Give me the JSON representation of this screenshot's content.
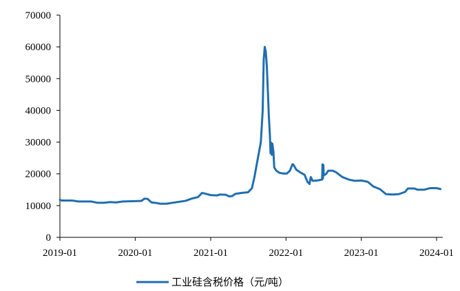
{
  "chart_data": {
    "type": "line",
    "title": "",
    "xlabel": "",
    "ylabel": "",
    "ylim": [
      0,
      70000
    ],
    "yticks": [
      0,
      10000,
      20000,
      30000,
      40000,
      50000,
      60000,
      70000
    ],
    "xlim": [
      "2019-01-01",
      "2024-01-31"
    ],
    "xtick_labels": [
      "2019-01",
      "2020-01",
      "2021-01",
      "2022-01",
      "2023-01",
      "2024-01"
    ],
    "xtick_dates": [
      "2019-01-01",
      "2020-01-01",
      "2021-01-01",
      "2022-01-01",
      "2023-01-01",
      "2024-01-01"
    ],
    "grid": false,
    "legend_position": "bottom-center",
    "series": [
      {
        "name": "工业硅含税价格（元/吨）",
        "color": "#1f6eb0",
        "points": [
          [
            "2019-01-01",
            11800
          ],
          [
            "2019-01-10",
            11600
          ],
          [
            "2019-03-01",
            11600
          ],
          [
            "2019-04-01",
            11300
          ],
          [
            "2019-06-01",
            11300
          ],
          [
            "2019-07-01",
            10900
          ],
          [
            "2019-08-01",
            10900
          ],
          [
            "2019-09-01",
            11100
          ],
          [
            "2019-10-01",
            11000
          ],
          [
            "2019-11-01",
            11300
          ],
          [
            "2020-01-01",
            11400
          ],
          [
            "2020-02-01",
            11500
          ],
          [
            "2020-02-15",
            12200
          ],
          [
            "2020-03-01",
            12100
          ],
          [
            "2020-03-20",
            11000
          ],
          [
            "2020-04-15",
            10800
          ],
          [
            "2020-05-01",
            10600
          ],
          [
            "2020-06-01",
            10600
          ],
          [
            "2020-07-01",
            10900
          ],
          [
            "2020-08-01",
            11200
          ],
          [
            "2020-09-01",
            11500
          ],
          [
            "2020-10-01",
            12200
          ],
          [
            "2020-11-01",
            12700
          ],
          [
            "2020-11-20",
            14000
          ],
          [
            "2020-12-10",
            13700
          ],
          [
            "2021-01-01",
            13300
          ],
          [
            "2021-02-01",
            13200
          ],
          [
            "2021-02-15",
            13500
          ],
          [
            "2021-03-15",
            13400
          ],
          [
            "2021-04-01",
            12900
          ],
          [
            "2021-04-15",
            13000
          ],
          [
            "2021-05-01",
            13700
          ],
          [
            "2021-06-01",
            14000
          ],
          [
            "2021-07-01",
            14200
          ],
          [
            "2021-07-20",
            15500
          ],
          [
            "2021-08-01",
            19000
          ],
          [
            "2021-08-15",
            24000
          ],
          [
            "2021-09-01",
            30000
          ],
          [
            "2021-09-10",
            40000
          ],
          [
            "2021-09-15",
            56000
          ],
          [
            "2021-09-20",
            60000
          ],
          [
            "2021-09-25",
            58500
          ],
          [
            "2021-09-30",
            54000
          ],
          [
            "2021-10-05",
            46000
          ],
          [
            "2021-10-10",
            38000
          ],
          [
            "2021-10-15",
            32000
          ],
          [
            "2021-10-18",
            26500
          ],
          [
            "2021-10-21",
            29800
          ],
          [
            "2021-10-24",
            26000
          ],
          [
            "2021-10-27",
            29500
          ],
          [
            "2021-11-01",
            27000
          ],
          [
            "2021-11-05",
            22000
          ],
          [
            "2021-11-15",
            21000
          ],
          [
            "2021-12-01",
            20300
          ],
          [
            "2021-12-20",
            20100
          ],
          [
            "2022-01-05",
            20100
          ],
          [
            "2022-01-20",
            21000
          ],
          [
            "2022-02-01",
            23000
          ],
          [
            "2022-02-05",
            23000
          ],
          [
            "2022-02-20",
            21300
          ],
          [
            "2022-03-10",
            20500
          ],
          [
            "2022-04-01",
            19700
          ],
          [
            "2022-04-15",
            17500
          ],
          [
            "2022-04-25",
            16800
          ],
          [
            "2022-05-01",
            19000
          ],
          [
            "2022-05-10",
            17800
          ],
          [
            "2022-06-01",
            17900
          ],
          [
            "2022-06-25",
            18200
          ],
          [
            "2022-06-27",
            23000
          ],
          [
            "2022-06-29",
            18500
          ],
          [
            "2022-07-01",
            22800
          ],
          [
            "2022-07-03",
            19500
          ],
          [
            "2022-07-15",
            20000
          ],
          [
            "2022-07-25",
            21000
          ],
          [
            "2022-08-15",
            21000
          ],
          [
            "2022-09-01",
            20500
          ],
          [
            "2022-10-01",
            19000
          ],
          [
            "2022-11-01",
            18200
          ],
          [
            "2022-12-01",
            17800
          ],
          [
            "2023-01-01",
            17900
          ],
          [
            "2023-02-01",
            17500
          ],
          [
            "2023-03-01",
            16000
          ],
          [
            "2023-04-01",
            15200
          ],
          [
            "2023-05-01",
            13600
          ],
          [
            "2023-06-01",
            13500
          ],
          [
            "2023-07-01",
            13600
          ],
          [
            "2023-08-01",
            14300
          ],
          [
            "2023-08-15",
            15400
          ],
          [
            "2023-09-15",
            15400
          ],
          [
            "2023-10-01",
            15000
          ],
          [
            "2023-11-01",
            15000
          ],
          [
            "2023-12-01",
            15500
          ],
          [
            "2024-01-01",
            15500
          ],
          [
            "2024-01-20",
            15200
          ]
        ]
      }
    ]
  }
}
